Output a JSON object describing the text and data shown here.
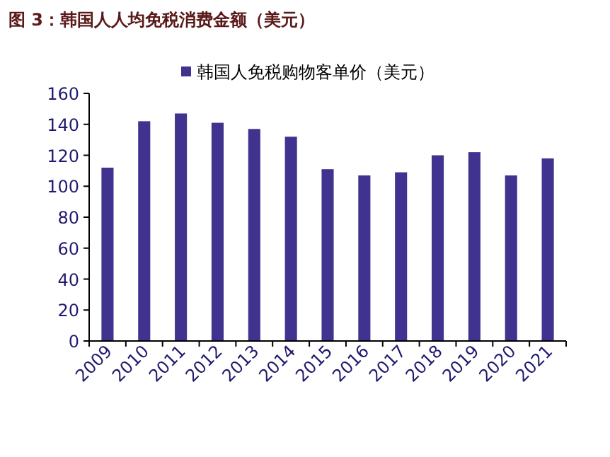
{
  "chart_data": {
    "type": "bar",
    "title": "图 3：韩国人人均免税消费金额（美元）",
    "categories": [
      "2009",
      "2010",
      "2011",
      "2012",
      "2013",
      "2014",
      "2015",
      "2016",
      "2017",
      "2018",
      "2019",
      "2020",
      "2021"
    ],
    "series": [
      {
        "name": "韩国人免税购物客单价（美元）",
        "color": "#40338f",
        "values": [
          112,
          142,
          147,
          141,
          137,
          132,
          111,
          107,
          109,
          120,
          122,
          107,
          118
        ]
      }
    ],
    "ylim": [
      0,
      160
    ],
    "yticks": [
      0,
      20,
      40,
      60,
      80,
      100,
      120,
      140,
      160
    ],
    "grid": false,
    "legend": "top"
  }
}
